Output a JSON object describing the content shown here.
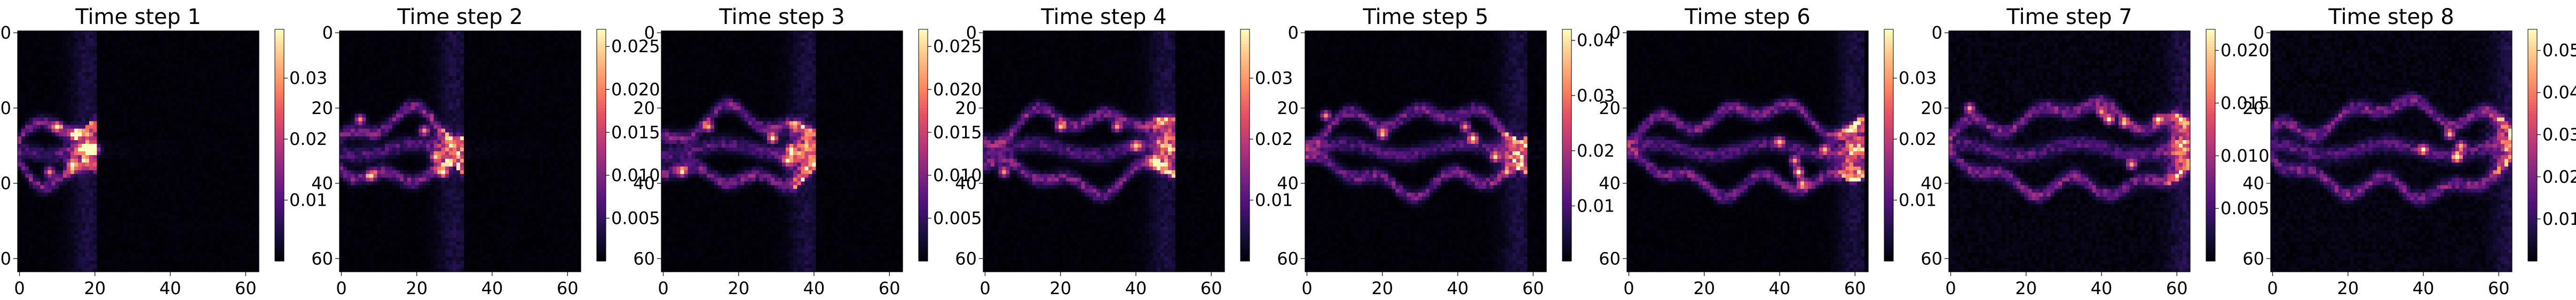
{
  "chart_data": [
    {
      "type": "heatmap",
      "title": "Time step 1",
      "xticks": [
        "0",
        "20",
        "40",
        "60"
      ],
      "yticks": [
        "0",
        "20",
        "40",
        "60"
      ],
      "xlim": [
        0,
        63
      ],
      "ylim": [
        0,
        63
      ],
      "vmin": 0,
      "vmax": 0.038,
      "colorbar_ticks": [
        0.01,
        0.02,
        0.03
      ],
      "colorbar_labels": [
        "0.01",
        "0.02",
        "0.03"
      ],
      "front_x": 18,
      "hot_spots": [
        [
          18,
          31
        ],
        [
          15,
          27
        ],
        [
          14,
          35
        ],
        [
          10,
          25
        ],
        [
          8,
          37
        ],
        [
          20,
          31
        ]
      ]
    },
    {
      "type": "heatmap",
      "title": "Time step 2",
      "xticks": [
        "0",
        "20",
        "40",
        "60"
      ],
      "yticks": [
        "0",
        "20",
        "40",
        "60"
      ],
      "xlim": [
        0,
        63
      ],
      "ylim": [
        0,
        63
      ],
      "vmin": 0,
      "vmax": 0.027,
      "colorbar_ticks": [
        0.005,
        0.01,
        0.015,
        0.02,
        0.025
      ],
      "colorbar_labels": [
        "0.005",
        "0.010",
        "0.015",
        "0.020",
        "0.025"
      ],
      "front_x": 30,
      "hot_spots": [
        [
          27,
          37
        ],
        [
          22,
          26
        ],
        [
          25,
          33
        ],
        [
          8,
          38
        ],
        [
          5,
          23
        ]
      ]
    },
    {
      "type": "heatmap",
      "title": "Time step 3",
      "xticks": [
        "0",
        "20",
        "40",
        "60"
      ],
      "yticks": [
        "0",
        "20",
        "40",
        "60"
      ],
      "xlim": [
        0,
        63
      ],
      "ylim": [
        0,
        63
      ],
      "vmin": 0,
      "vmax": 0.027,
      "colorbar_ticks": [
        0.005,
        0.01,
        0.015,
        0.02,
        0.025
      ],
      "colorbar_labels": [
        "0.005",
        "0.010",
        "0.015",
        "0.020",
        "0.025"
      ],
      "front_x": 38,
      "hot_spots": [
        [
          29,
          28
        ],
        [
          34,
          31
        ],
        [
          33,
          34
        ],
        [
          12,
          25
        ],
        [
          5,
          37
        ]
      ]
    },
    {
      "type": "heatmap",
      "title": "Time step 4",
      "xticks": [
        "0",
        "20",
        "40",
        "60"
      ],
      "yticks": [
        "0",
        "20",
        "40",
        "60"
      ],
      "xlim": [
        0,
        63
      ],
      "ylim": [
        0,
        63
      ],
      "vmin": 0,
      "vmax": 0.038,
      "colorbar_ticks": [
        0.01,
        0.02,
        0.03
      ],
      "colorbar_labels": [
        "0.01",
        "0.02",
        "0.03"
      ],
      "front_x": 48,
      "hot_spots": [
        [
          45,
          34
        ],
        [
          40,
          30
        ],
        [
          35,
          25
        ],
        [
          20,
          25
        ],
        [
          5,
          37
        ]
      ]
    },
    {
      "type": "heatmap",
      "title": "Time step 5",
      "xticks": [
        "0",
        "20",
        "40",
        "60"
      ],
      "yticks": [
        "0",
        "20",
        "40",
        "60"
      ],
      "xlim": [
        0,
        63
      ],
      "ylim": [
        0,
        63
      ],
      "vmin": 0,
      "vmax": 0.042,
      "colorbar_ticks": [
        0.01,
        0.02,
        0.03,
        0.04
      ],
      "colorbar_labels": [
        "0.01",
        "0.02",
        "0.03",
        "0.04"
      ],
      "front_x": 56,
      "hot_spots": [
        [
          44,
          28
        ],
        [
          42,
          25
        ],
        [
          50,
          33
        ],
        [
          20,
          27
        ],
        [
          5,
          22
        ]
      ]
    },
    {
      "type": "heatmap",
      "title": "Time step 6",
      "xticks": [
        "0",
        "20",
        "40",
        "60"
      ],
      "yticks": [
        "0",
        "20",
        "40",
        "60"
      ],
      "xlim": [
        0,
        63
      ],
      "ylim": [
        0,
        63
      ],
      "vmin": 0,
      "vmax": 0.038,
      "colorbar_ticks": [
        0.01,
        0.02,
        0.03
      ],
      "colorbar_labels": [
        "0.01",
        "0.02",
        "0.03"
      ],
      "front_x": 60,
      "hot_spots": [
        [
          45,
          37
        ],
        [
          44,
          34
        ],
        [
          46,
          40
        ],
        [
          52,
          31
        ],
        [
          40,
          29
        ]
      ]
    },
    {
      "type": "heatmap",
      "title": "Time step 7",
      "xticks": [
        "0",
        "20",
        "40",
        "60"
      ],
      "yticks": [
        "0",
        "20",
        "40",
        "60"
      ],
      "xlim": [
        0,
        63
      ],
      "ylim": [
        0,
        63
      ],
      "vmin": 0,
      "vmax": 0.022,
      "colorbar_ticks": [
        0.005,
        0.01,
        0.015,
        0.02
      ],
      "colorbar_labels": [
        "0.005",
        "0.010",
        "0.015",
        "0.020"
      ],
      "front_x": 62,
      "hot_spots": [
        [
          42,
          23
        ],
        [
          40,
          21
        ],
        [
          46,
          24
        ],
        [
          55,
          23
        ],
        [
          48,
          35
        ],
        [
          5,
          20
        ]
      ]
    },
    {
      "type": "heatmap",
      "title": "Time step 8",
      "xticks": [
        "0",
        "20",
        "40",
        "60"
      ],
      "yticks": [
        "0",
        "20",
        "40",
        "60"
      ],
      "xlim": [
        0,
        63
      ],
      "ylim": [
        0,
        63
      ],
      "vmin": 0,
      "vmax": 0.055,
      "colorbar_ticks": [
        0.01,
        0.02,
        0.03,
        0.04,
        0.05
      ],
      "colorbar_labels": [
        "0.01",
        "0.02",
        "0.03",
        "0.04",
        "0.05"
      ],
      "front_x": 63,
      "hot_spots": [
        [
          49,
          33
        ],
        [
          50,
          30
        ],
        [
          47,
          27
        ],
        [
          40,
          31
        ]
      ]
    }
  ]
}
